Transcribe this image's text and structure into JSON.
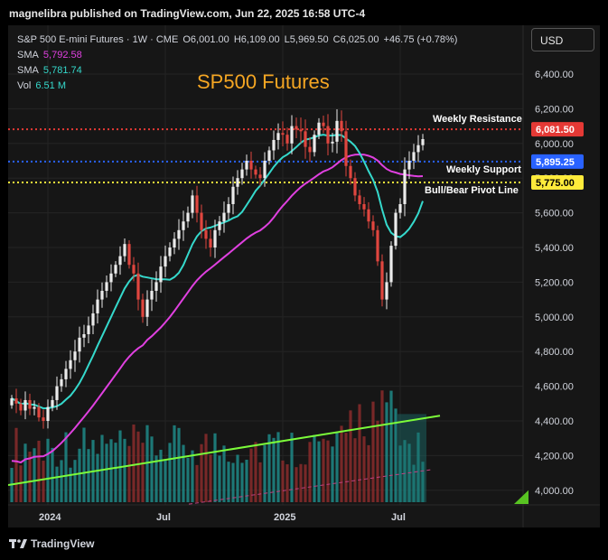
{
  "header": {
    "published": "magnelibra published on TradingView.com, Jun 22, 2025 16:58 UTC-4"
  },
  "legend": {
    "symbol": "S&P 500 E-mini Futures · 1W · CME",
    "open_label": "O",
    "open": "6,001.00",
    "high_label": "H",
    "high": "6,109.00",
    "low_label": "L",
    "low": "5,969.50",
    "close_label": "C",
    "close": "6,025.00",
    "change": "+46.75 (+0.78%)",
    "sma1_label": "SMA",
    "sma1_value": "5,792.58",
    "sma2_label": "SMA",
    "sma2_value": "5,781.74",
    "vol_label": "Vol",
    "vol_value": "6.51 M"
  },
  "currency_button": "USD",
  "footer": {
    "brand": "TradingView"
  },
  "colors": {
    "up": "#ebebeb",
    "down": "#e0463f",
    "sma_fast": "#35d9cc",
    "sma_slow": "#e040e0",
    "resistance": "#e53935",
    "support": "#2962ff",
    "pivot": "#ffeb3b",
    "trend": "#7cfc3a",
    "title": "#f5a623"
  },
  "chart_data": {
    "type": "candlestick",
    "title": "SP500 Futures",
    "price_axis": {
      "ticks": [
        4000,
        4200,
        4400,
        4600,
        4800,
        5000,
        5200,
        5400,
        5600,
        5800,
        6000,
        6200,
        6400
      ],
      "tick_labels": [
        "4,000.00",
        "4,200.00",
        "4,400.00",
        "4,600.00",
        "4,800.00",
        "5,000.00",
        "5,200.00",
        "5,400.00",
        "5,600.00",
        "5,800.00",
        "6,000.00",
        "6,200.00",
        "6,400.00"
      ],
      "range": [
        3910,
        6630
      ]
    },
    "time_axis": {
      "labels": [
        {
          "text": "2024",
          "week": 8
        },
        {
          "text": "Jul",
          "week": 34
        },
        {
          "text": "2025",
          "week": 60
        },
        {
          "text": "Jul",
          "week": 86
        }
      ]
    },
    "levels": [
      {
        "name": "Weekly Resistance",
        "value": 6081.5,
        "label": "6,081.50",
        "style": "resistance"
      },
      {
        "name": "Weekly Support",
        "value": 5895.25,
        "label": "5,895.25",
        "style": "support"
      },
      {
        "name": "Bull/Bear Pivot Line",
        "value": 5775.0,
        "label": "5,775.00",
        "style": "pivot"
      }
    ],
    "annotations": [
      {
        "text": "Weekly Resistance",
        "near": "resistance"
      },
      {
        "text": "Weekly Support",
        "near": "support"
      },
      {
        "text": "Bull/Bear Pivot Line",
        "near": "pivot"
      }
    ],
    "volume_trendline": {
      "start_price_equiv": 4030,
      "end_price_equiv": 4430
    },
    "closes": [
      4530,
      4500,
      4460,
      4520,
      4470,
      4480,
      4420,
      4400,
      4480,
      4520,
      4600,
      4640,
      4700,
      4750,
      4800,
      4880,
      4900,
      4950,
      5020,
      5100,
      5150,
      5200,
      5250,
      5300,
      5350,
      5420,
      5300,
      5250,
      5100,
      5000,
      5100,
      5150,
      5200,
      5290,
      5350,
      5400,
      5450,
      5500,
      5550,
      5600,
      5700,
      5600,
      5500,
      5450,
      5400,
      5500,
      5550,
      5600,
      5650,
      5750,
      5800,
      5850,
      5900,
      5850,
      5820,
      5800,
      5900,
      5960,
      6020,
      6060,
      6050,
      6000,
      6100,
      6080,
      6070,
      5980,
      5950,
      6050,
      6120,
      6100,
      6000,
      6010,
      6130,
      6070,
      5870,
      5800,
      5700,
      5650,
      5620,
      5550,
      5500,
      5320,
      5100,
      5200,
      5410,
      5600,
      5650,
      5850,
      5900,
      5950,
      5990,
      6025
    ]
  }
}
